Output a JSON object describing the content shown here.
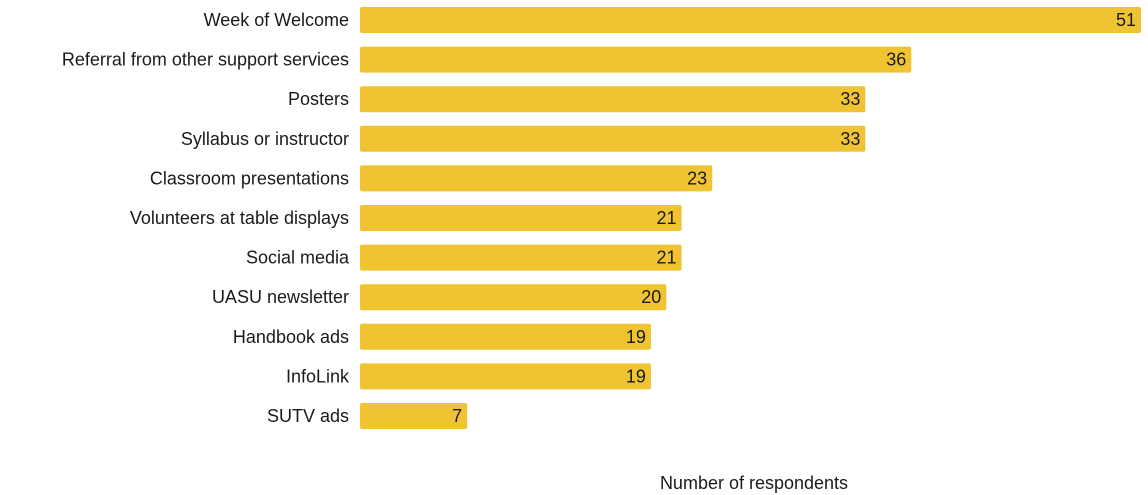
{
  "chart_data": {
    "type": "bar",
    "orientation": "horizontal",
    "categories": [
      "Week of Welcome",
      "Referral from other support services",
      "Posters",
      "Syllabus or instructor",
      "Classroom presentations",
      "Volunteers at table displays",
      "Social media",
      "UASU newsletter",
      "Handbook ads",
      "InfoLink",
      "SUTV ads"
    ],
    "values": [
      51,
      36,
      33,
      33,
      23,
      21,
      21,
      20,
      19,
      19,
      7
    ],
    "title": "",
    "xlabel": "Number of respondents",
    "ylabel": "",
    "xlim": [
      0,
      51
    ],
    "grid": false,
    "data_labels": true,
    "bar_color": "#F0C332"
  }
}
